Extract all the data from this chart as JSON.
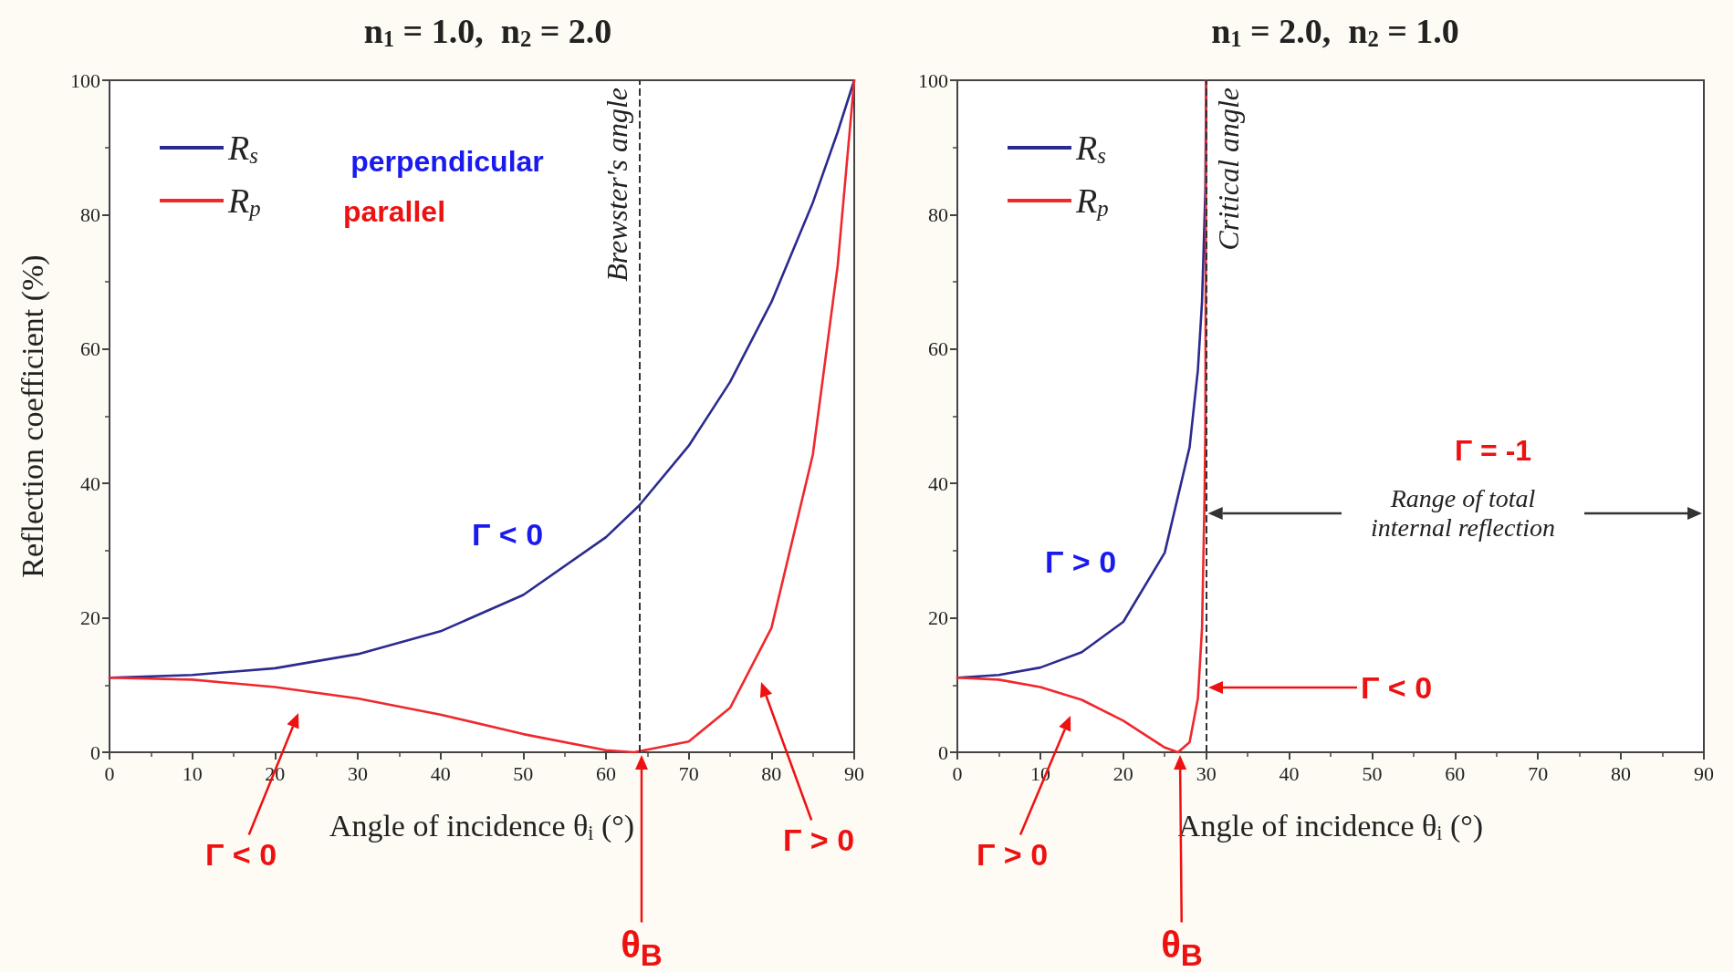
{
  "chart_data": [
    {
      "type": "line",
      "title": "n$_{1}$ = 1.0,  n$_{2}$ = 2.0",
      "xlabel": "Angle of incidence θ$_{i}$ (°)",
      "ylabel": "Reflection coefficient (%)",
      "xlim": [
        0,
        90
      ],
      "xticks": [
        0,
        10,
        20,
        30,
        40,
        50,
        60,
        70,
        80,
        90
      ],
      "ylim": [
        0,
        100
      ],
      "yticks": [
        0,
        20,
        40,
        60,
        80,
        100
      ],
      "legend": "top left",
      "marker": "none",
      "line_style": "solid",
      "series": [
        {
          "name": "R$_{s}$",
          "color": "#2b2b8f",
          "x": [
            0,
            10,
            20,
            30,
            40,
            50,
            60,
            64,
            70,
            75,
            80,
            85,
            88,
            90
          ],
          "values": [
            11.1,
            11.5,
            12.5,
            14.6,
            18.0,
            23.4,
            32.0,
            36.7,
            45.6,
            55.1,
            67.0,
            81.8,
            92.3,
            100
          ]
        },
        {
          "name": "R$_{p}$",
          "color": "#f0282d",
          "x": [
            0,
            10,
            20,
            30,
            40,
            50,
            60,
            63.4,
            70,
            75,
            80,
            85,
            88,
            90
          ],
          "values": [
            11.1,
            10.8,
            9.7,
            8.0,
            5.6,
            2.7,
            0.3,
            0,
            1.6,
            6.6,
            18.5,
            44.3,
            72.4,
            100
          ]
        }
      ],
      "ref_lines": [
        {
          "axis": "x",
          "value": 64,
          "label": "Brewster's angle",
          "line_style": "dashed",
          "color": "#333333"
        }
      ],
      "annotations": [
        "perpendicular",
        "parallel",
        "Γ < 0",
        "Γ < 0",
        "Γ > 0",
        "θ$_{B}$"
      ]
    },
    {
      "type": "line",
      "title": "n$_{1}$ = 2.0,  n$_{2}$ = 1.0",
      "xlabel": "Angle of incidence θ$_{i}$ (°)",
      "xlim": [
        0,
        90
      ],
      "xticks": [
        0,
        10,
        20,
        30,
        40,
        50,
        60,
        70,
        80,
        90
      ],
      "ylim": [
        0,
        100
      ],
      "yticks": [
        0,
        20,
        40,
        60,
        80,
        100
      ],
      "legend": "top left",
      "marker": "none",
      "line_style": "solid",
      "series": [
        {
          "name": "R$_{s}$",
          "color": "#2b2b8f",
          "x": [
            0,
            5,
            10,
            15,
            20,
            25,
            28,
            29,
            29.5,
            29.9,
            30
          ],
          "values": [
            11.1,
            11.5,
            12.6,
            14.9,
            19.4,
            29.7,
            45.4,
            56.9,
            67.1,
            83.6,
            100
          ]
        },
        {
          "name": "R$_{p}$",
          "color": "#f0282d",
          "x": [
            0,
            5,
            10,
            15,
            20,
            25,
            26.6,
            28,
            29,
            29.5,
            29.8,
            29.9,
            30
          ],
          "values": [
            11.1,
            10.8,
            9.7,
            7.8,
            4.7,
            0.7,
            0,
            1.5,
            8.0,
            18.5,
            37.7,
            48.5,
            100
          ]
        }
      ],
      "ref_lines": [
        {
          "axis": "x",
          "value": 30,
          "label": "Critical angle",
          "line_style": "dashed",
          "color": "#333333"
        }
      ],
      "annotations": [
        "Γ > 0",
        "Γ = -1",
        "Range of total internal reflection",
        "Γ < 0",
        "Γ > 0",
        "θ$_{B}$"
      ]
    }
  ]
}
